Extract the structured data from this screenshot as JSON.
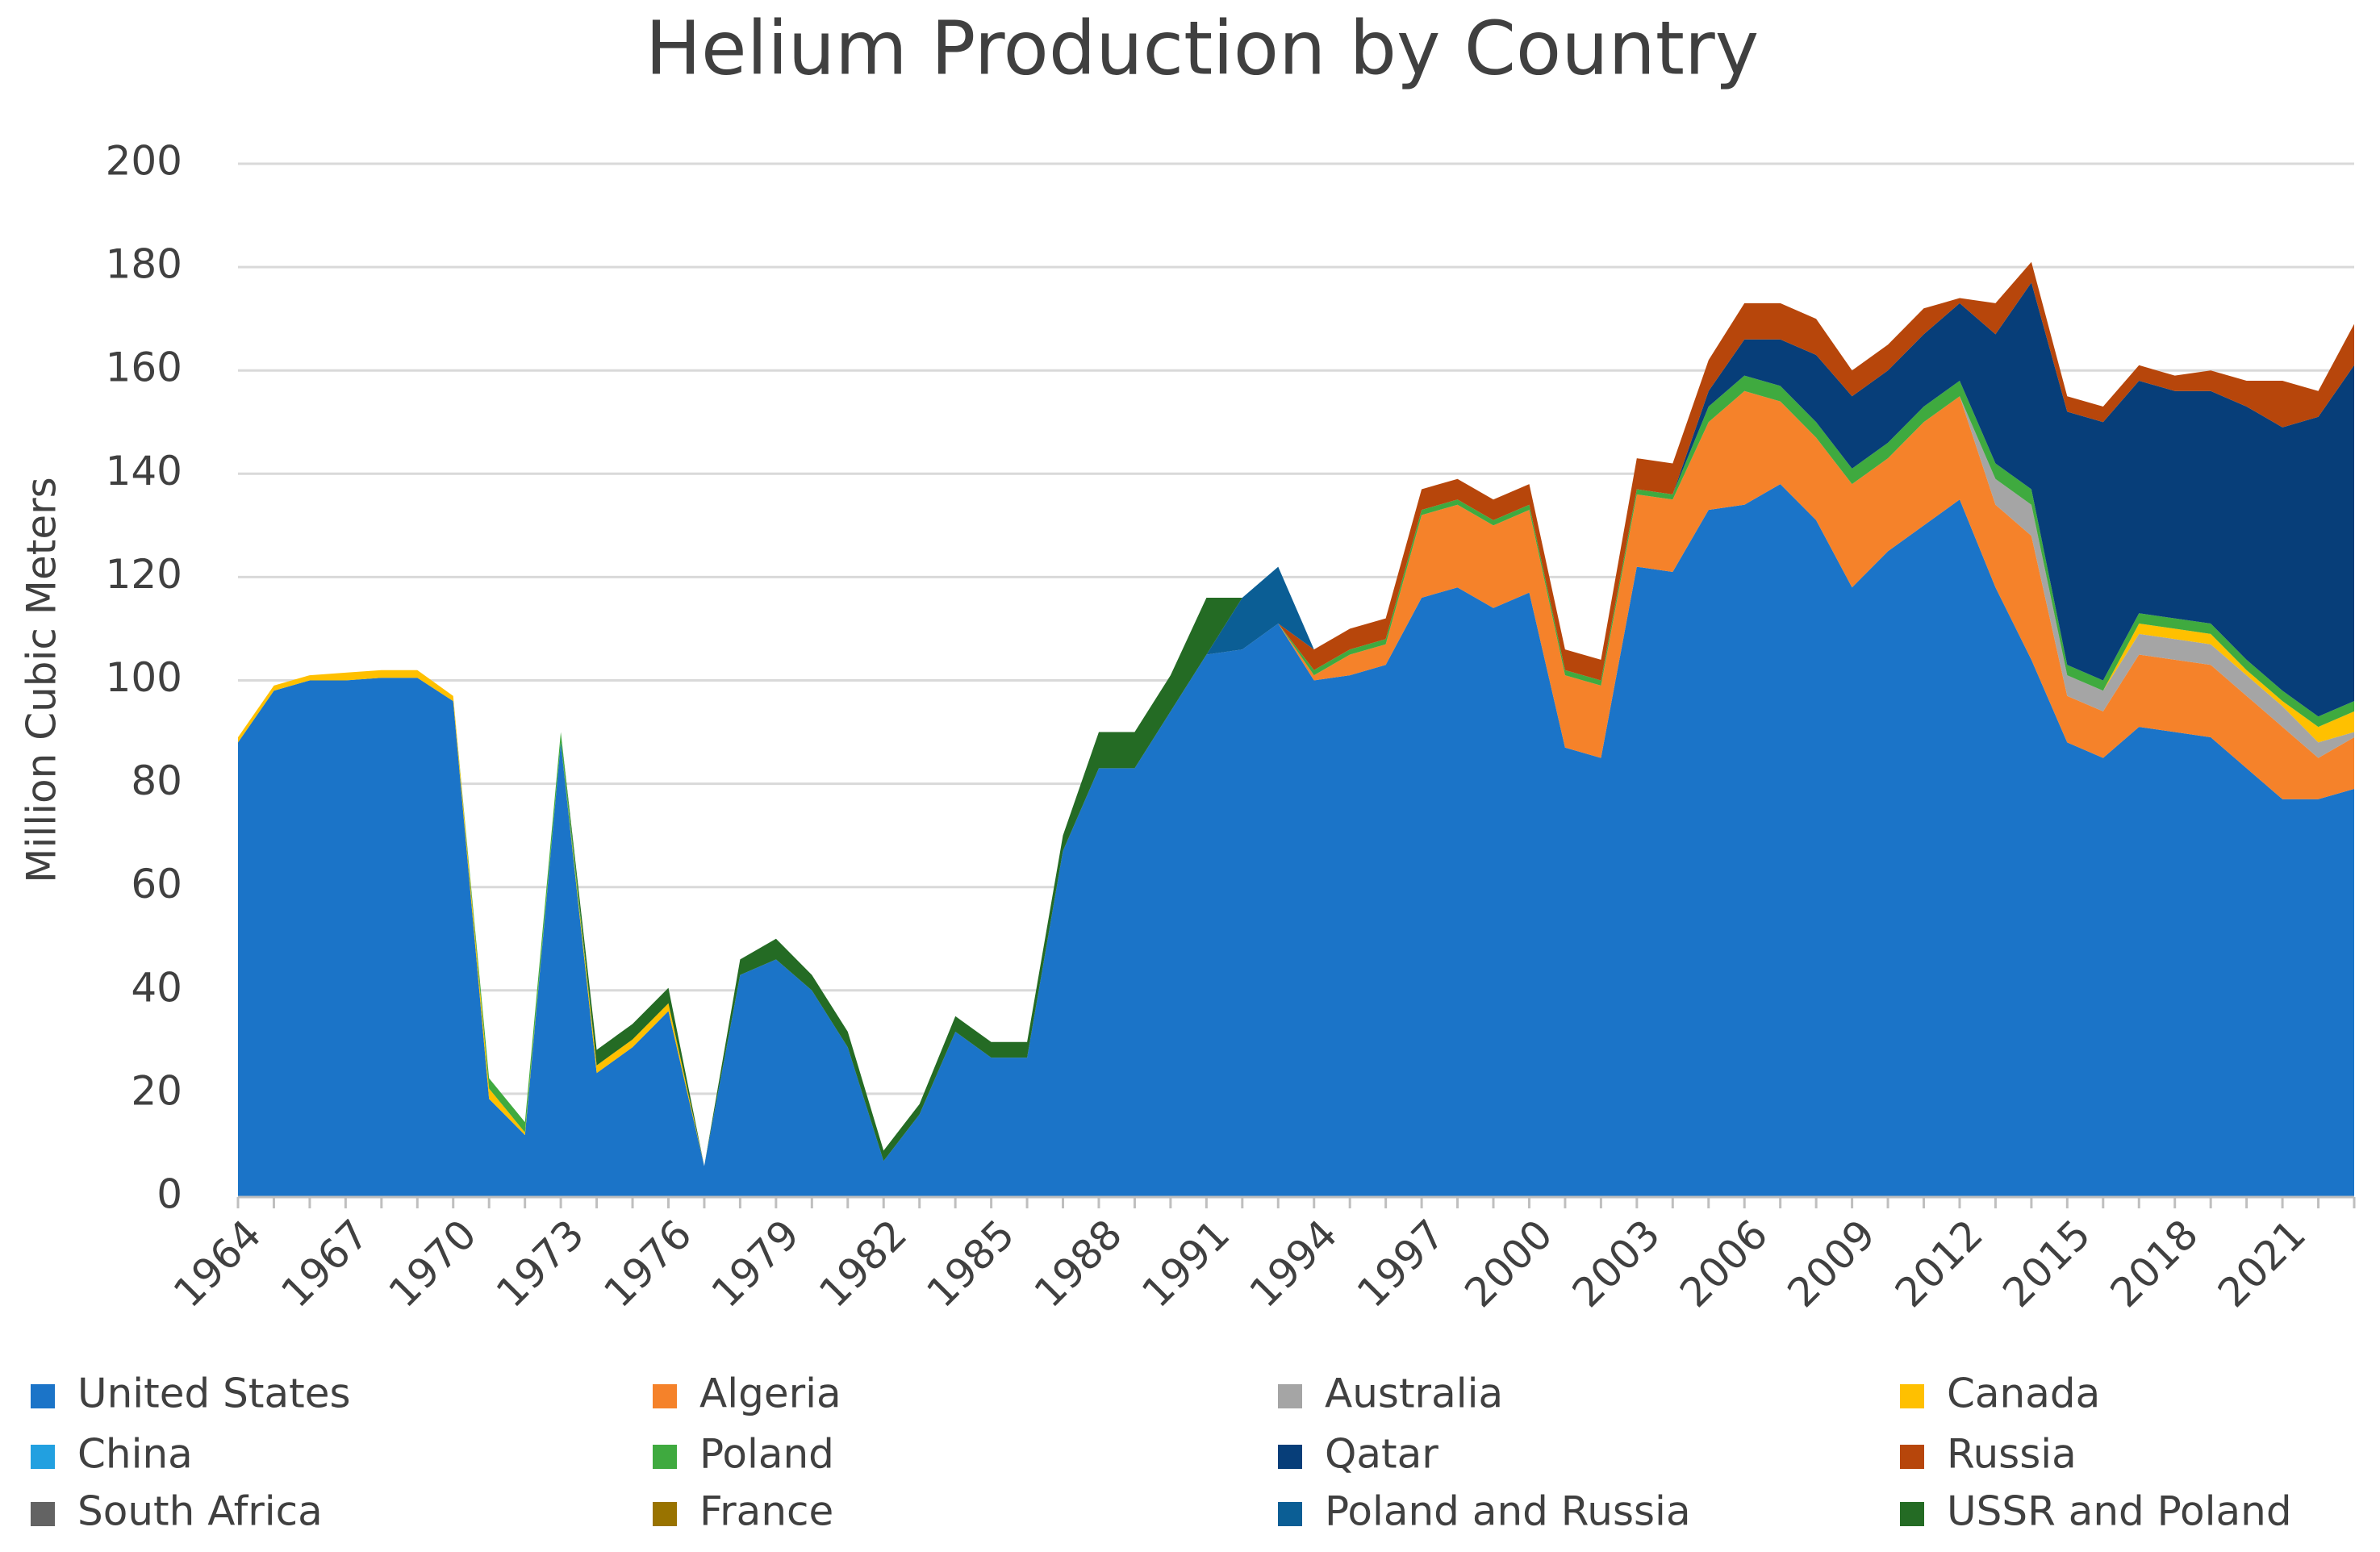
{
  "chart_data": {
    "type": "stacked_area",
    "title": "Helium Production by Country",
    "y_label": "Million Cubic Meters",
    "categories": [
      "1964",
      null,
      null,
      "1967",
      null,
      null,
      "1970",
      null,
      null,
      "1973",
      null,
      null,
      "1976",
      null,
      null,
      "1979",
      null,
      null,
      "1982",
      null,
      null,
      "1985",
      null,
      null,
      "1988",
      null,
      null,
      "1991",
      null,
      null,
      "1994",
      null,
      null,
      "1997",
      null,
      null,
      "2000",
      null,
      null,
      "2003",
      null,
      null,
      "2006",
      null,
      null,
      "2009",
      null,
      null,
      "2012",
      null,
      null,
      "2015",
      null,
      null,
      "2018",
      null,
      null,
      "2021",
      null,
      null
    ],
    "ylim": [
      0,
      200
    ],
    "yticks": [
      0,
      20,
      40,
      60,
      80,
      100,
      120,
      140,
      160,
      180,
      200
    ],
    "grid": true,
    "legend": "bottom",
    "series": [
      {
        "name": "United States",
        "color": "#1b74c8",
        "values": [
          88,
          98,
          100,
          100,
          100.5,
          100.5,
          96,
          19,
          12,
          88,
          24,
          29,
          36,
          6,
          43,
          46,
          40,
          29,
          7,
          16,
          32,
          27,
          27,
          67,
          83,
          83,
          94,
          105,
          106,
          111,
          100,
          101,
          103,
          116,
          118,
          114,
          117,
          87,
          85,
          122,
          121,
          133,
          134,
          138,
          131,
          118,
          125,
          130,
          135,
          118,
          104,
          88,
          85,
          91,
          90,
          89,
          83,
          77,
          77,
          79
        ]
      },
      {
        "name": "Algeria",
        "color": "#f5822a",
        "values": [
          0,
          0,
          0,
          0,
          0,
          0,
          0,
          0,
          0,
          0,
          0,
          0,
          0,
          0,
          0,
          0,
          0,
          0,
          0,
          0,
          0,
          0,
          0,
          0,
          0,
          0,
          0,
          0,
          0,
          0,
          1,
          4,
          4,
          16,
          16,
          16,
          16,
          14,
          14,
          14,
          14,
          17,
          22,
          16,
          16,
          20,
          18,
          20,
          20,
          16,
          24,
          9,
          9,
          14,
          14,
          14,
          14,
          14,
          8,
          10
        ]
      },
      {
        "name": "Australia",
        "color": "#a5a5a5",
        "values": [
          0,
          0,
          0,
          0,
          0,
          0,
          0,
          0,
          0,
          0,
          0,
          0,
          0,
          0,
          0,
          0,
          0,
          0,
          0,
          0,
          0,
          0,
          0,
          0,
          0,
          0,
          0,
          0,
          0,
          0,
          0,
          0,
          0,
          0,
          0,
          0,
          0,
          0,
          0,
          0,
          0,
          0,
          0,
          0,
          0,
          0,
          0,
          0,
          0,
          5,
          6,
          4,
          4,
          4,
          4,
          4,
          4,
          4,
          3,
          1
        ]
      },
      {
        "name": "Canada",
        "color": "#ffc000",
        "values": [
          1,
          1,
          1,
          1.5,
          1.5,
          1.5,
          1,
          2,
          0.5,
          0,
          1.5,
          1.5,
          1.5,
          0,
          0,
          0,
          0,
          0,
          0,
          0,
          0,
          0,
          0,
          0,
          0,
          0,
          0,
          0,
          0,
          0,
          0,
          0,
          0,
          0,
          0,
          0,
          0,
          0,
          0,
          0,
          0,
          0,
          0,
          0,
          0,
          0,
          0,
          0,
          0,
          0,
          0,
          0,
          0,
          2,
          2,
          2,
          1,
          1,
          3,
          4
        ]
      },
      {
        "name": "China",
        "color": "#22a0e0",
        "values": [
          0,
          0,
          0,
          0,
          0,
          0,
          0,
          0,
          0,
          0,
          0,
          0,
          0,
          0,
          0,
          0,
          0,
          0,
          0,
          0,
          0,
          0,
          0,
          0,
          0,
          0,
          0,
          0,
          0,
          0,
          0,
          0,
          0,
          0,
          0,
          0,
          0,
          0,
          0,
          0,
          0,
          0,
          0,
          0,
          0,
          0,
          0,
          0,
          0,
          0,
          0,
          0,
          0,
          0,
          0,
          0,
          0,
          0,
          0,
          0
        ]
      },
      {
        "name": "Poland",
        "color": "#3faa3f",
        "values": [
          0,
          0,
          0,
          0,
          0,
          0,
          0,
          2,
          2,
          2,
          0,
          0,
          0,
          0,
          0,
          0,
          0,
          0,
          0,
          0,
          0,
          0,
          0,
          0,
          0,
          0,
          0,
          0,
          0,
          0,
          1,
          1,
          1,
          1,
          1,
          1,
          1,
          1,
          1,
          1,
          1,
          3,
          3,
          3,
          3,
          3,
          3,
          3,
          3,
          3,
          3,
          2,
          2,
          2,
          2,
          2,
          2,
          2,
          2,
          2
        ]
      },
      {
        "name": "Qatar",
        "color": "#073e79",
        "values": [
          0,
          0,
          0,
          0,
          0,
          0,
          0,
          0,
          0,
          0,
          0,
          0,
          0,
          0,
          0,
          0,
          0,
          0,
          0,
          0,
          0,
          0,
          0,
          0,
          0,
          0,
          0,
          0,
          0,
          0,
          0,
          0,
          0,
          0,
          0,
          0,
          0,
          0,
          0,
          0,
          0,
          3,
          7,
          9,
          13,
          14,
          14,
          14,
          15,
          25,
          40,
          49,
          50,
          45,
          44,
          45,
          49,
          51,
          58,
          65
        ]
      },
      {
        "name": "Russia",
        "color": "#b7460b",
        "values": [
          0,
          0,
          0,
          0,
          0,
          0,
          0,
          0,
          0,
          0,
          0,
          0,
          0,
          0,
          0,
          0,
          0,
          0,
          0,
          0,
          0,
          0,
          0,
          0,
          0,
          0,
          0,
          0,
          0,
          0,
          4,
          4,
          4,
          4,
          4,
          4,
          4,
          4,
          4,
          6,
          6,
          6,
          7,
          7,
          7,
          5,
          5,
          5,
          1,
          6,
          4,
          3,
          3,
          3,
          3,
          4,
          5,
          9,
          5,
          8
        ]
      },
      {
        "name": "South Africa",
        "color": "#636363",
        "values": [
          0,
          0,
          0,
          0,
          0,
          0,
          0,
          0,
          0,
          0,
          0,
          0,
          0,
          0,
          0,
          0,
          0,
          0,
          0,
          0,
          0,
          0,
          0,
          0,
          0,
          0,
          0,
          0,
          0,
          0,
          0,
          0,
          0,
          0,
          0,
          0,
          0,
          0,
          0,
          0,
          0,
          0,
          0,
          0,
          0,
          0,
          0,
          0,
          0,
          0,
          0,
          0,
          0,
          0,
          0,
          0,
          0,
          0,
          0,
          0
        ]
      },
      {
        "name": "France",
        "color": "#997300",
        "values": [
          0,
          0,
          0,
          0,
          0,
          0,
          0,
          0,
          0,
          0,
          0,
          0,
          0,
          0,
          0,
          0,
          0,
          0,
          0,
          0,
          0,
          0,
          0,
          0,
          0,
          0,
          0,
          0,
          0,
          0,
          0,
          0,
          0,
          0,
          0,
          0,
          0,
          0,
          0,
          0,
          0,
          0,
          0,
          0,
          0,
          0,
          0,
          0,
          0,
          0,
          0,
          0,
          0,
          0,
          0,
          0,
          0,
          0,
          0,
          0
        ]
      },
      {
        "name": "Poland and Russia",
        "color": "#0b5e95",
        "values": [
          0,
          0,
          0,
          0,
          0,
          0,
          0,
          0,
          0,
          0,
          0,
          0,
          0,
          0,
          0,
          0,
          0,
          0,
          0,
          0,
          0,
          0,
          0,
          0,
          0,
          0,
          0,
          0,
          10,
          11,
          0,
          0,
          0,
          0,
          0,
          0,
          0,
          0,
          0,
          0,
          0,
          0,
          0,
          0,
          0,
          0,
          0,
          0,
          0,
          0,
          0,
          0,
          0,
          0,
          0,
          0,
          0,
          0,
          0,
          0
        ]
      },
      {
        "name": "USSR and Poland",
        "color": "#246b24",
        "values": [
          0,
          0,
          0,
          0,
          0,
          0,
          0,
          0,
          0,
          0,
          3,
          3,
          3,
          0,
          3,
          4,
          3,
          3,
          2,
          2,
          3,
          3,
          3,
          3,
          7,
          7,
          7,
          11,
          0,
          0,
          0,
          0,
          0,
          0,
          0,
          0,
          0,
          0,
          0,
          0,
          0,
          0,
          0,
          0,
          0,
          0,
          0,
          0,
          0,
          0,
          0,
          0,
          0,
          0,
          0,
          0,
          0,
          0,
          0,
          0
        ]
      }
    ]
  }
}
